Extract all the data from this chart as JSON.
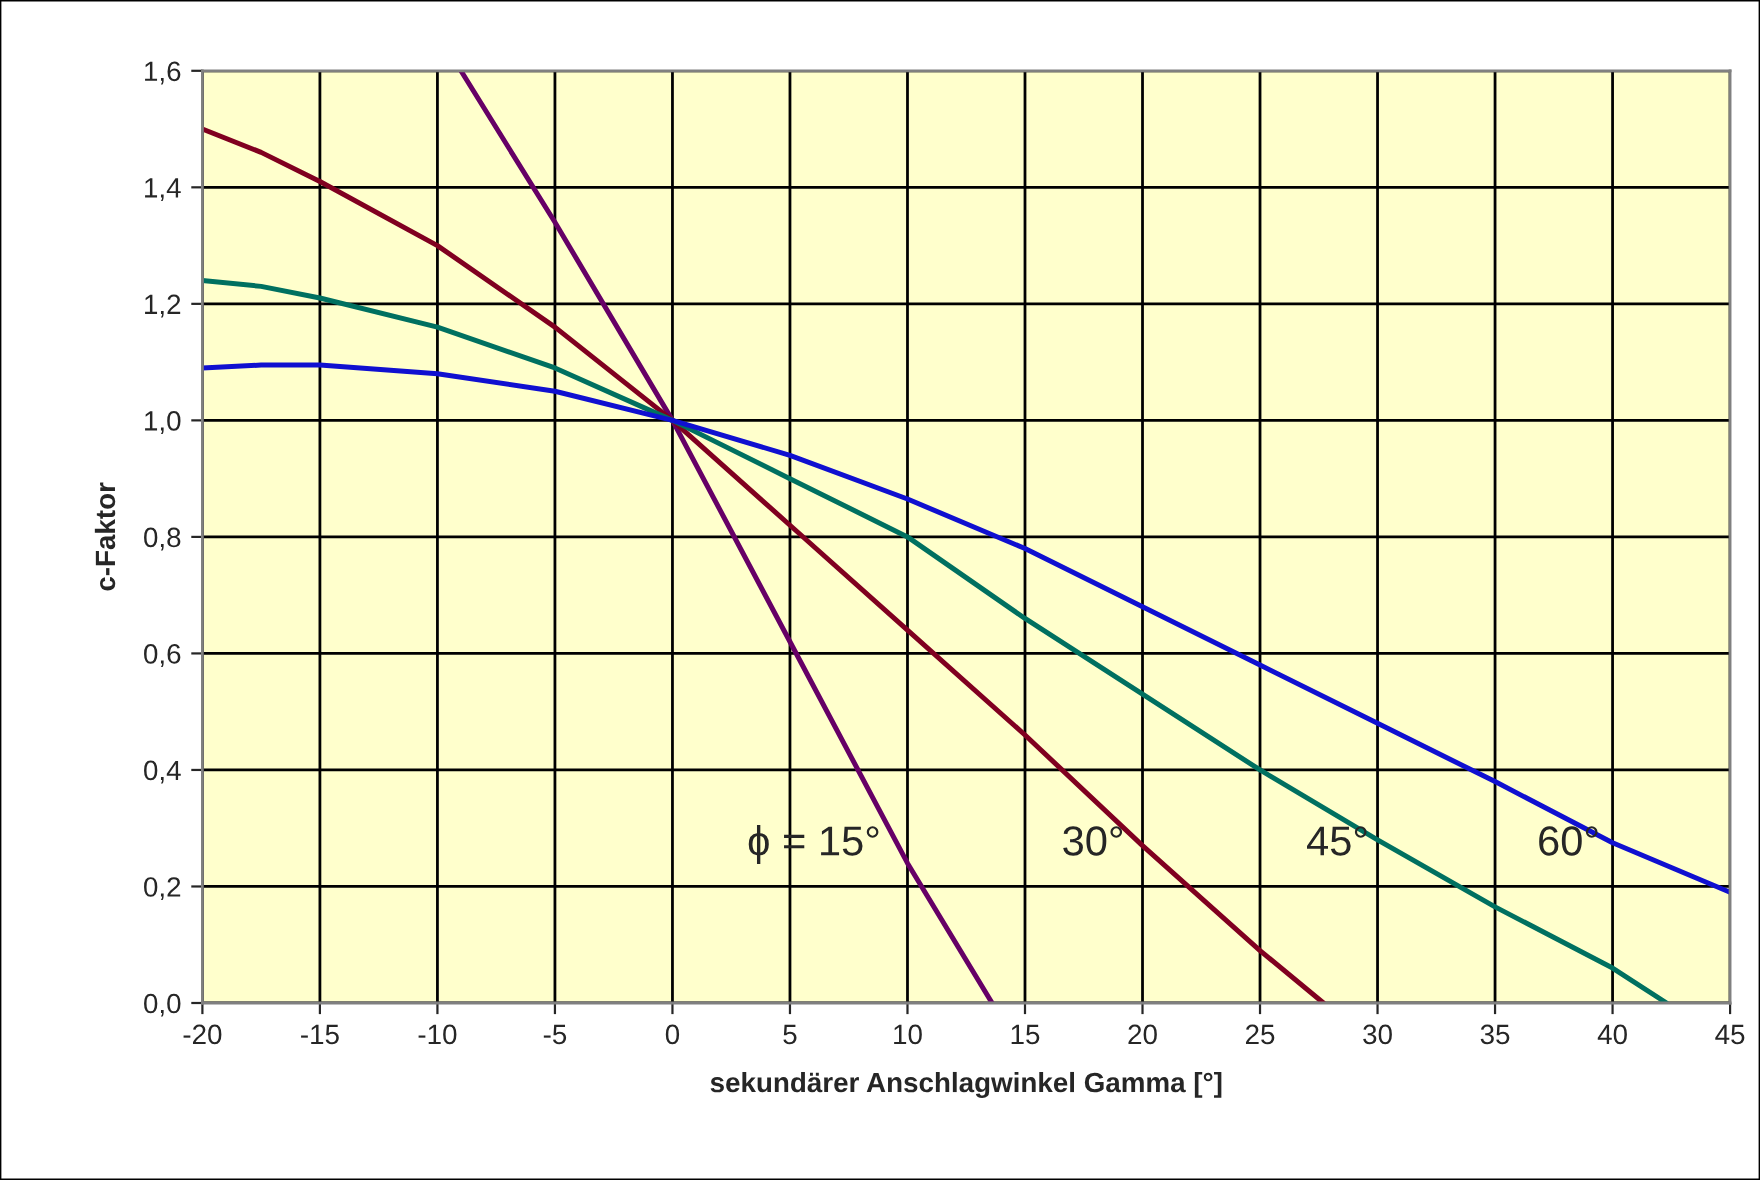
{
  "chart_data": {
    "type": "line",
    "xlabel": "sekundärer Anschlagwinkel Gamma [°]",
    "ylabel": "c-Faktor",
    "xlim": [
      -20,
      45
    ],
    "xticks": [
      -20,
      -15,
      -10,
      -5,
      0,
      5,
      10,
      15,
      20,
      25,
      30,
      35,
      40,
      45
    ],
    "ylim": [
      0,
      1.6
    ],
    "yticks": [
      {
        "value": 0,
        "label": "0,0"
      },
      {
        "value": 0.2,
        "label": "0,2"
      },
      {
        "value": 0.4,
        "label": "0,4"
      },
      {
        "value": 0.6,
        "label": "0,6"
      },
      {
        "value": 0.8,
        "label": "0,8"
      },
      {
        "value": 1.0,
        "label": "1,0"
      },
      {
        "value": 1.2,
        "label": "1,2"
      },
      {
        "value": 1.4,
        "label": "1,4"
      },
      {
        "value": 1.6,
        "label": "1,6"
      }
    ],
    "grid": true,
    "legend": false,
    "marker": "none",
    "line_style": "solid",
    "series": [
      {
        "name": "ϕ = 15°",
        "color": "#660066",
        "x": [
          -9,
          -5,
          0,
          5,
          10,
          13.6
        ],
        "values": [
          1.6,
          1.34,
          1.0,
          0.62,
          0.24,
          0.0
        ]
      },
      {
        "name": "30°",
        "color": "#800020",
        "x": [
          -20,
          -17.5,
          -15,
          -10,
          -5,
          0,
          5,
          10,
          15,
          20,
          25,
          27.7
        ],
        "values": [
          1.5,
          1.46,
          1.41,
          1.3,
          1.16,
          1.0,
          0.82,
          0.64,
          0.46,
          0.27,
          0.09,
          0.0
        ]
      },
      {
        "name": "45°",
        "color": "#007060",
        "x": [
          -20,
          -17.5,
          -15,
          -10,
          -5,
          0,
          5,
          10,
          15,
          20,
          25,
          30,
          35,
          40,
          42.3
        ],
        "values": [
          1.24,
          1.23,
          1.21,
          1.16,
          1.09,
          1.0,
          0.9,
          0.8,
          0.66,
          0.53,
          0.4,
          0.28,
          0.165,
          0.06,
          0.0
        ]
      },
      {
        "name": "60°",
        "color": "#1010d0",
        "x": [
          -20,
          -17.5,
          -15,
          -10,
          -5,
          0,
          5,
          10,
          15,
          20,
          25,
          30,
          35,
          40,
          45
        ],
        "values": [
          1.09,
          1.095,
          1.095,
          1.08,
          1.05,
          1.0,
          0.94,
          0.865,
          0.78,
          0.68,
          0.58,
          0.48,
          0.38,
          0.275,
          0.19
        ]
      }
    ]
  }
}
